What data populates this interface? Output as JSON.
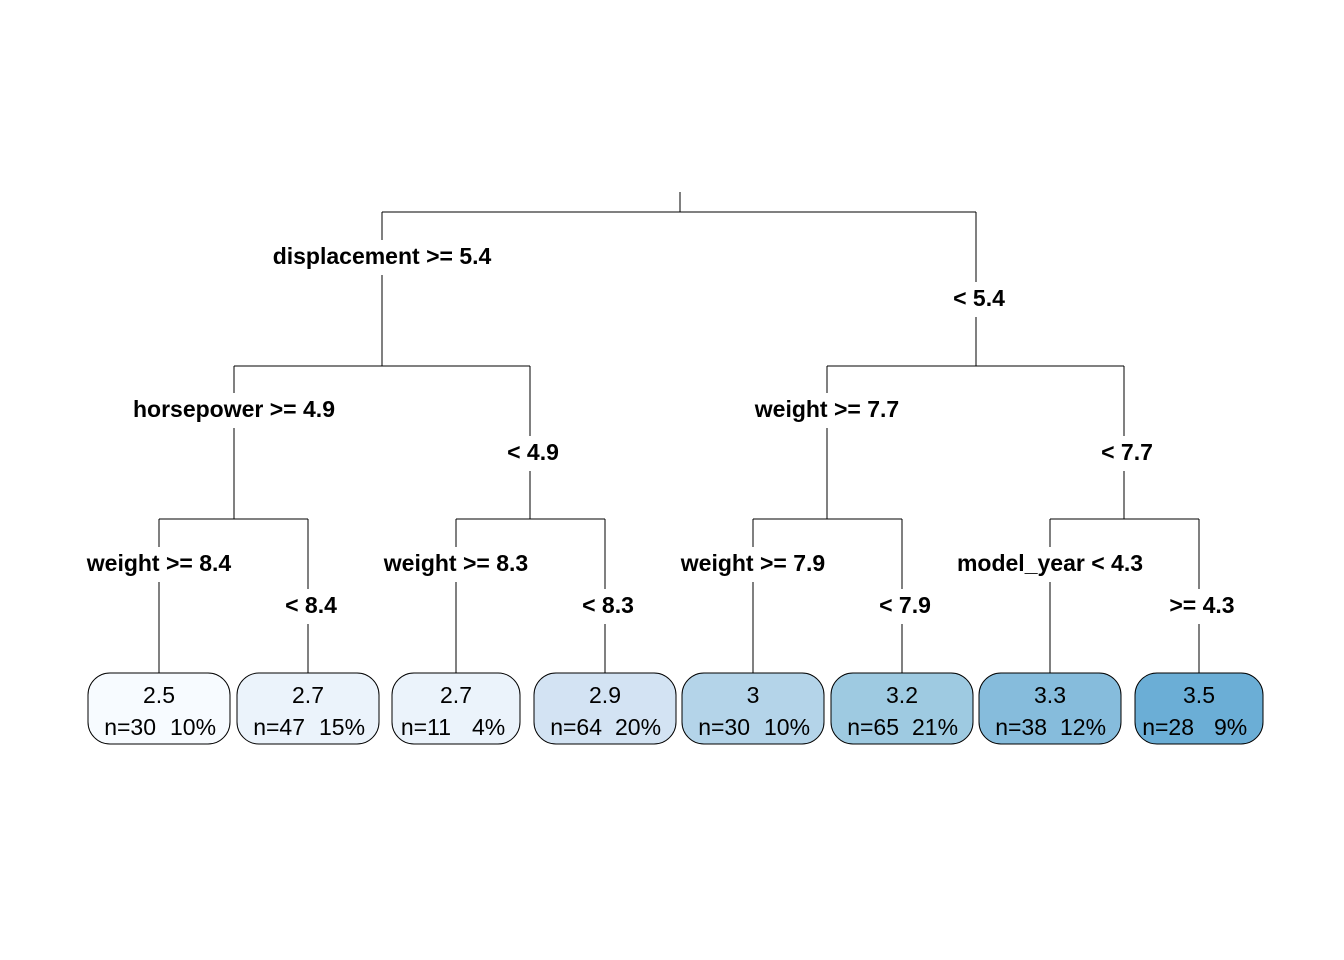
{
  "tree": {
    "splits": [
      {
        "id": "root",
        "left_label": "displacement >= 5.4",
        "right_label": "< 5.4"
      },
      {
        "id": "l",
        "left_label": "horsepower >= 4.9",
        "right_label": "< 4.9"
      },
      {
        "id": "r",
        "left_label": "weight >= 7.7",
        "right_label": "< 7.7"
      },
      {
        "id": "ll",
        "left_label": "weight >= 8.4",
        "right_label": "< 8.4"
      },
      {
        "id": "lr",
        "left_label": "weight >= 8.3",
        "right_label": "< 8.3"
      },
      {
        "id": "rl",
        "left_label": "weight >= 7.9",
        "right_label": "< 7.9"
      },
      {
        "id": "rr",
        "left_label": "model_year < 4.3",
        "right_label": ">= 4.3"
      }
    ],
    "leaves": [
      {
        "value": "2.5",
        "n": "n=30",
        "pct": "10%",
        "fill": "#f7fbff"
      },
      {
        "value": "2.7",
        "n": "n=47",
        "pct": "15%",
        "fill": "#ebf3fb"
      },
      {
        "value": "2.7",
        "n": "n=11",
        "pct": "4%",
        "fill": "#ebf3fb"
      },
      {
        "value": "2.9",
        "n": "n=64",
        "pct": "20%",
        "fill": "#d3e3f3"
      },
      {
        "value": "3",
        "n": "n=30",
        "pct": "10%",
        "fill": "#b4d4e9"
      },
      {
        "value": "3.2",
        "n": "n=65",
        "pct": "21%",
        "fill": "#9ecae1"
      },
      {
        "value": "3.3",
        "n": "n=38",
        "pct": "12%",
        "fill": "#86bcdc"
      },
      {
        "value": "3.5",
        "n": "n=28",
        "pct": "9%",
        "fill": "#6baed6"
      }
    ]
  }
}
